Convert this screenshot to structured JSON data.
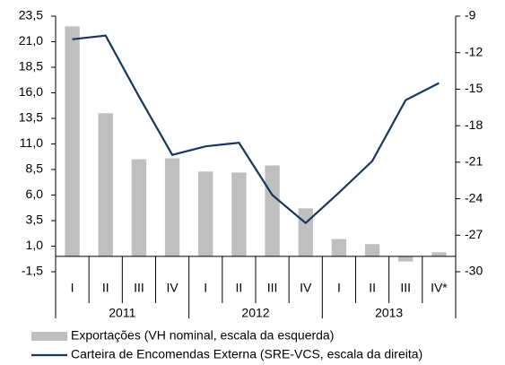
{
  "chart_data": {
    "type": "combo",
    "categories": [
      "I",
      "II",
      "III",
      "IV",
      "I",
      "II",
      "III",
      "IV",
      "I",
      "II",
      "III",
      "IV*"
    ],
    "groups": [
      "2011",
      "2012",
      "2013"
    ],
    "series": [
      {
        "name": "Exportações (VH nominal, escala da esquerda)",
        "type": "bar",
        "color": "#bfbfbf",
        "values": [
          22.5,
          14.0,
          9.5,
          9.6,
          8.3,
          8.2,
          8.9,
          4.7,
          1.7,
          1.2,
          -0.5,
          0.4
        ]
      },
      {
        "name": "Carteira de Encomendas Externa (SRE-VCS, escala da direita)",
        "type": "line",
        "axis": "y2",
        "color": "#17375e",
        "values": [
          -10.9,
          -10.6,
          -15.6,
          -20.4,
          -19.7,
          -19.4,
          -23.7,
          -26.0,
          -23.5,
          -20.9,
          -15.9,
          -14.5
        ]
      }
    ],
    "ylim": [
      -1.5,
      23.5
    ],
    "yticks": [
      {
        "value": -1.5,
        "label": "-1,5"
      },
      {
        "value": 1.0,
        "label": "1,0"
      },
      {
        "value": 3.5,
        "label": "3,5"
      },
      {
        "value": 6.0,
        "label": "6,0"
      },
      {
        "value": 8.5,
        "label": "8,5"
      },
      {
        "value": 11.0,
        "label": "11,0"
      },
      {
        "value": 13.5,
        "label": "13,5"
      },
      {
        "value": 16.0,
        "label": "16,0"
      },
      {
        "value": 18.5,
        "label": "18,5"
      },
      {
        "value": 21.0,
        "label": "21,0"
      },
      {
        "value": 23.5,
        "label": "23,5"
      }
    ],
    "y2lim": [
      -30,
      -9
    ],
    "y2ticks": [
      -30,
      -27,
      -24,
      -21,
      -18,
      -15,
      -12,
      -9
    ],
    "legend": "bottom"
  }
}
